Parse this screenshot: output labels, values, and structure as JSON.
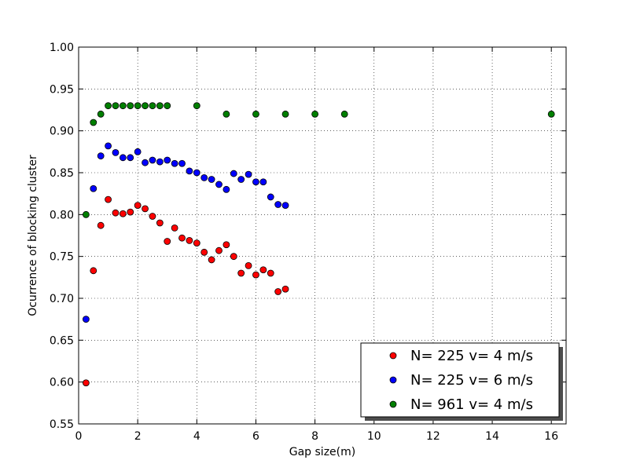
{
  "chart_data": {
    "type": "scatter",
    "xlabel": "Gap size(m)",
    "ylabel": "Ocurrence of blocking cluster",
    "xlim": [
      0,
      16.5
    ],
    "ylim": [
      0.55,
      1.0
    ],
    "x_ticks": [
      "0",
      "2",
      "4",
      "6",
      "8",
      "10",
      "12",
      "14",
      "16"
    ],
    "y_ticks": [
      "0.55",
      "0.60",
      "0.65",
      "0.70",
      "0.75",
      "0.80",
      "0.85",
      "0.90",
      "0.95",
      "1.00"
    ],
    "grid": true,
    "legend_position": "lower-right",
    "series": [
      {
        "name": "N= 225  v= 4 m/s",
        "color": "#ff0000",
        "x": [
          0.25,
          0.5,
          0.75,
          1.0,
          1.25,
          1.5,
          1.75,
          2.0,
          2.25,
          2.5,
          2.75,
          3.0,
          3.25,
          3.5,
          3.75,
          4.0,
          4.25,
          4.5,
          4.75,
          5.0,
          5.25,
          5.5,
          5.75,
          6.0,
          6.25,
          6.5,
          6.75,
          7.0
        ],
        "y": [
          0.599,
          0.733,
          0.787,
          0.818,
          0.802,
          0.801,
          0.803,
          0.811,
          0.807,
          0.798,
          0.79,
          0.768,
          0.784,
          0.772,
          0.769,
          0.766,
          0.755,
          0.746,
          0.757,
          0.764,
          0.75,
          0.73,
          0.739,
          0.728,
          0.734,
          0.73,
          0.708,
          0.711
        ]
      },
      {
        "name": "N= 225  v= 6 m/s",
        "color": "#0000ff",
        "x": [
          0.25,
          0.5,
          0.75,
          1.0,
          1.25,
          1.5,
          1.75,
          2.0,
          2.25,
          2.5,
          2.75,
          3.0,
          3.25,
          3.5,
          3.75,
          4.0,
          4.25,
          4.5,
          4.75,
          5.0,
          5.25,
          5.5,
          5.75,
          6.0,
          6.25,
          6.5,
          6.75,
          7.0
        ],
        "y": [
          0.675,
          0.831,
          0.87,
          0.882,
          0.874,
          0.868,
          0.868,
          0.875,
          0.862,
          0.865,
          0.863,
          0.865,
          0.861,
          0.861,
          0.852,
          0.85,
          0.844,
          0.842,
          0.836,
          0.83,
          0.849,
          0.842,
          0.848,
          0.839,
          0.839,
          0.821,
          0.812,
          0.811
        ]
      },
      {
        "name": "N= 961  v= 4 m/s",
        "color": "#007f00",
        "x": [
          0.25,
          0.5,
          0.75,
          1.0,
          1.25,
          1.5,
          1.75,
          2.0,
          2.25,
          2.5,
          2.75,
          3.0,
          4.0,
          5.0,
          6.0,
          7.0,
          8.0,
          9.0,
          16.0
        ],
        "y": [
          0.8,
          0.91,
          0.92,
          0.93,
          0.93,
          0.93,
          0.93,
          0.93,
          0.93,
          0.93,
          0.93,
          0.93,
          0.93,
          0.92,
          0.92,
          0.92,
          0.92,
          0.92,
          0.92
        ]
      }
    ]
  }
}
